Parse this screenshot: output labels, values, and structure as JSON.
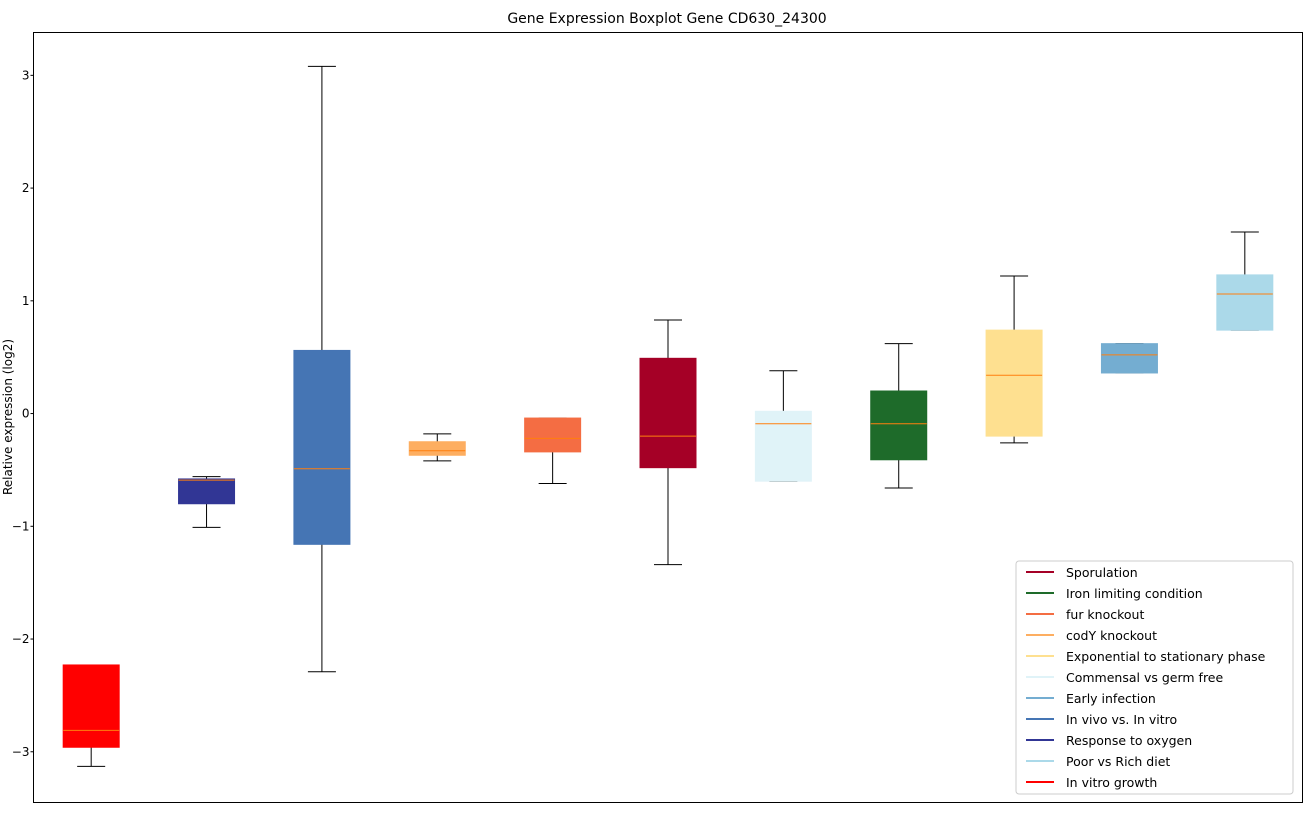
{
  "chart_data": {
    "type": "boxplot",
    "title": "Gene Expression Boxplot Gene CD630_24300",
    "xlabel": "",
    "ylabel": "Relative expression (log2)",
    "ylim": [
      -3.45,
      3.38
    ],
    "yticks": [
      -3,
      -2,
      -1,
      0,
      1,
      2,
      3
    ],
    "ytick_labels": [
      "−3",
      "−2",
      "−1",
      "0",
      "1",
      "2",
      "3"
    ],
    "grid": false,
    "legend_position": "lower-right",
    "median_color": "#ff7f0e",
    "boxes": [
      {
        "name": "In vitro growth",
        "color": "#ff0000",
        "whislo": -3.13,
        "q1": -2.96,
        "med": -2.81,
        "q3": -2.23,
        "whishi": -2.23
      },
      {
        "name": "Response to oxygen",
        "color": "#313695",
        "whislo": -1.01,
        "q1": -0.8,
        "med": -0.59,
        "q3": -0.58,
        "whishi": -0.56
      },
      {
        "name": "In vivo vs. In vitro",
        "color": "#4575b4",
        "whislo": -2.29,
        "q1": -1.16,
        "med": -0.49,
        "q3": 0.56,
        "whishi": 3.08
      },
      {
        "name": "codY knockout",
        "color": "#fdae61",
        "whislo": -0.42,
        "q1": -0.37,
        "med": -0.33,
        "q3": -0.25,
        "whishi": -0.18
      },
      {
        "name": "fur knockout",
        "color": "#f46d43",
        "whislo": -0.62,
        "q1": -0.34,
        "med": -0.22,
        "q3": -0.04,
        "whishi": -0.04
      },
      {
        "name": "Sporulation",
        "color": "#a50026",
        "whislo": -1.34,
        "q1": -0.48,
        "med": -0.2,
        "q3": 0.49,
        "whishi": 0.83
      },
      {
        "name": "Commensal vs germ free",
        "color": "#e0f3f8",
        "whislo": -0.6,
        "q1": -0.6,
        "med": -0.09,
        "q3": 0.02,
        "whishi": 0.38
      },
      {
        "name": "Iron limiting condition",
        "color": "#1e6b2a",
        "whislo": -0.66,
        "q1": -0.41,
        "med": -0.09,
        "q3": 0.2,
        "whishi": 0.62
      },
      {
        "name": "Exponential to stationary phase",
        "color": "#fee090",
        "whislo": -0.26,
        "q1": -0.2,
        "med": 0.34,
        "q3": 0.74,
        "whishi": 1.22
      },
      {
        "name": "Early infection",
        "color": "#74add1",
        "whislo": 0.36,
        "q1": 0.36,
        "med": 0.52,
        "q3": 0.62,
        "whishi": 0.62
      },
      {
        "name": "Poor vs Rich diet",
        "color": "#abd9e9",
        "whislo": 0.74,
        "q1": 0.74,
        "med": 1.06,
        "q3": 1.23,
        "whishi": 1.61
      }
    ],
    "legend": [
      {
        "label": "Sporulation",
        "color": "#a50026"
      },
      {
        "label": "Iron limiting condition",
        "color": "#1e6b2a"
      },
      {
        "label": "fur knockout",
        "color": "#f46d43"
      },
      {
        "label": "codY knockout",
        "color": "#fdae61"
      },
      {
        "label": "Exponential to stationary phase",
        "color": "#fee090"
      },
      {
        "label": "Commensal vs germ free",
        "color": "#e0f3f8"
      },
      {
        "label": "Early infection",
        "color": "#74add1"
      },
      {
        "label": "In vivo vs. In vitro",
        "color": "#4575b4"
      },
      {
        "label": "Response to oxygen",
        "color": "#313695"
      },
      {
        "label": "Poor vs Rich diet",
        "color": "#abd9e9"
      },
      {
        "label": "In vitro growth",
        "color": "#ff0000"
      }
    ]
  }
}
